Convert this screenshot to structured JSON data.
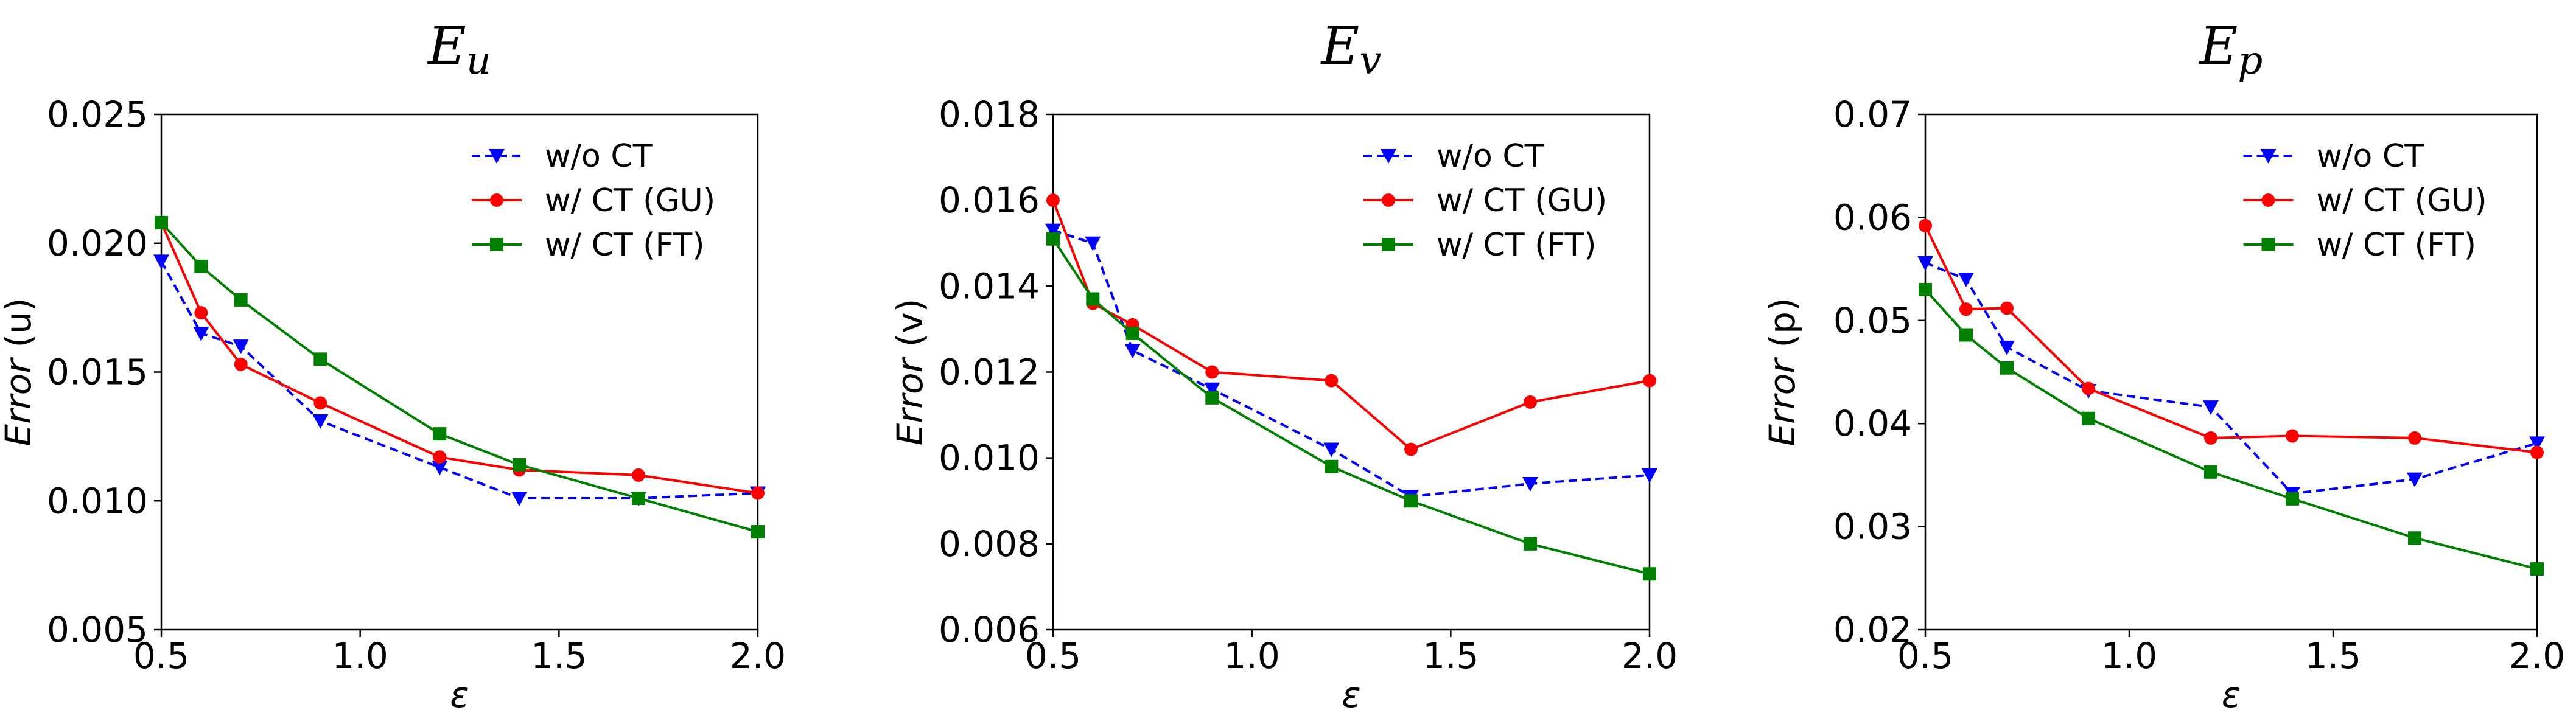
{
  "chart_data": [
    {
      "type": "line",
      "title": "E",
      "title_sub": "u",
      "xlabel": "ε",
      "ylabel_italic": "Error",
      "ylabel_rest": " (u)",
      "xlim": [
        0.5,
        2.0
      ],
      "ylim": [
        0.005,
        0.025
      ],
      "xticks": [
        "0.5",
        "1.0",
        "1.5",
        "2.0"
      ],
      "yticks": [
        "0.005",
        "0.010",
        "0.015",
        "0.020",
        "0.025"
      ],
      "legend": "top-right",
      "grid": false,
      "x": [
        0.5,
        0.6,
        0.7,
        0.9,
        1.2,
        1.4,
        1.7,
        2.0
      ],
      "series": [
        {
          "name": "w/o CT",
          "color": "#0000ff",
          "style": "dashed",
          "marker": "triangle-down",
          "values": [
            0.0193,
            0.0165,
            0.016,
            0.0131,
            0.0113,
            0.0101,
            0.0101,
            0.0103
          ]
        },
        {
          "name": "w/ CT (GU)",
          "color": "#ff0000",
          "style": "solid",
          "marker": "circle",
          "values": [
            0.0208,
            0.0173,
            0.0153,
            0.0138,
            0.0117,
            0.0112,
            0.011,
            0.0103
          ]
        },
        {
          "name": "w/ CT (FT)",
          "color": "#008000",
          "style": "solid",
          "marker": "square",
          "values": [
            0.0208,
            0.0191,
            0.0178,
            0.0155,
            0.0126,
            0.0114,
            0.0101,
            0.0088
          ]
        }
      ]
    },
    {
      "type": "line",
      "title": "E",
      "title_sub": "v",
      "xlabel": "ε",
      "ylabel_italic": "Error",
      "ylabel_rest": " (v)",
      "xlim": [
        0.5,
        2.0
      ],
      "ylim": [
        0.006,
        0.018
      ],
      "xticks": [
        "0.5",
        "1.0",
        "1.5",
        "2.0"
      ],
      "yticks": [
        "0.006",
        "0.008",
        "0.010",
        "0.012",
        "0.014",
        "0.016",
        "0.018"
      ],
      "legend": "top-right",
      "grid": false,
      "x": [
        0.5,
        0.6,
        0.7,
        0.9,
        1.2,
        1.4,
        1.7,
        2.0
      ],
      "series": [
        {
          "name": "w/o CT",
          "color": "#0000ff",
          "style": "dashed",
          "marker": "triangle-down",
          "values": [
            0.0153,
            0.015,
            0.0125,
            0.0116,
            0.0102,
            0.0091,
            0.0094,
            0.0096
          ]
        },
        {
          "name": "w/ CT (GU)",
          "color": "#ff0000",
          "style": "solid",
          "marker": "circle",
          "values": [
            0.016,
            0.0136,
            0.0131,
            0.012,
            0.0118,
            0.0102,
            0.0113,
            0.0118
          ]
        },
        {
          "name": "w/ CT (FT)",
          "color": "#008000",
          "style": "solid",
          "marker": "square",
          "values": [
            0.0151,
            0.0137,
            0.0129,
            0.0114,
            0.0098,
            0.009,
            0.008,
            0.0073
          ]
        }
      ]
    },
    {
      "type": "line",
      "title": "E",
      "title_sub": "p",
      "xlabel": "ε",
      "ylabel_italic": "Error",
      "ylabel_rest": " (p)",
      "xlim": [
        0.5,
        2.0
      ],
      "ylim": [
        0.02,
        0.07
      ],
      "xticks": [
        "0.5",
        "1.0",
        "1.5",
        "2.0"
      ],
      "yticks": [
        "0.02",
        "0.03",
        "0.04",
        "0.05",
        "0.06",
        "0.07"
      ],
      "legend": "top-right",
      "grid": false,
      "x": [
        0.5,
        0.6,
        0.7,
        0.9,
        1.2,
        1.4,
        1.7,
        2.0
      ],
      "series": [
        {
          "name": "w/o CT",
          "color": "#0000ff",
          "style": "dashed",
          "marker": "triangle-down",
          "values": [
            0.0556,
            0.054,
            0.0474,
            0.0432,
            0.0416,
            0.0332,
            0.0346,
            0.0381
          ]
        },
        {
          "name": "w/ CT (GU)",
          "color": "#ff0000",
          "style": "solid",
          "marker": "circle",
          "values": [
            0.0592,
            0.0511,
            0.0512,
            0.0434,
            0.0386,
            0.0388,
            0.0386,
            0.0372
          ]
        },
        {
          "name": "w/ CT (FT)",
          "color": "#008000",
          "style": "solid",
          "marker": "square",
          "values": [
            0.053,
            0.0486,
            0.0454,
            0.0405,
            0.0353,
            0.0327,
            0.0289,
            0.0259
          ]
        }
      ]
    }
  ]
}
